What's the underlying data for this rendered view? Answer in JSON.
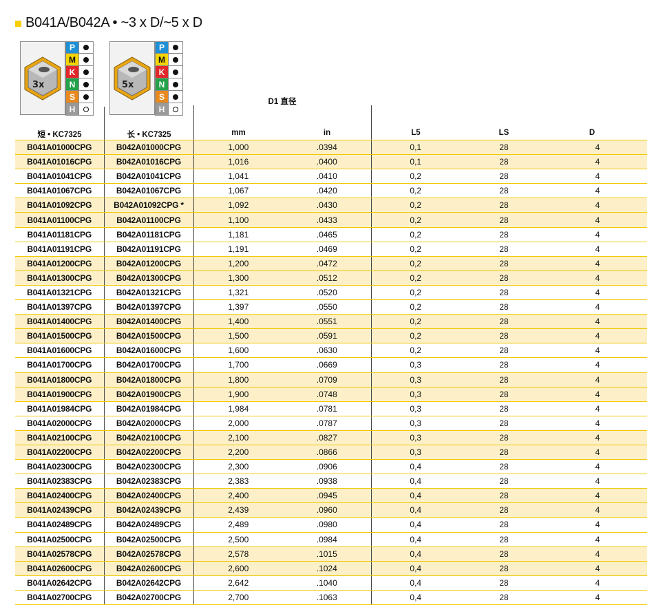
{
  "title": "B041A/B042A • ~3 x D/~5 x D",
  "colors": {
    "accent": "#f7cf00",
    "highlight": "#fdf0c8",
    "rule": "#f0c800"
  },
  "icons": [
    {
      "name": "3xd-drill-depth-icon",
      "label": "3x"
    },
    {
      "name": "5xd-drill-depth-icon",
      "label": "5x"
    }
  ],
  "materials": [
    {
      "letter": "P",
      "color": "#1e90d6",
      "text_color": "#ffffff",
      "rating": "full"
    },
    {
      "letter": "M",
      "color": "#f2d400",
      "text_color": "#111111",
      "rating": "full"
    },
    {
      "letter": "K",
      "color": "#e3262a",
      "text_color": "#ffffff",
      "rating": "full"
    },
    {
      "letter": "N",
      "color": "#23a24a",
      "text_color": "#ffffff",
      "rating": "full"
    },
    {
      "letter": "S",
      "color": "#e98a1f",
      "text_color": "#ffffff",
      "rating": "full"
    },
    {
      "letter": "H",
      "color": "#9a9a9a",
      "text_color": "#ffffff",
      "rating": "hollow"
    }
  ],
  "headers": {
    "d1": "D1 直径",
    "short": "短 • KC7325",
    "long": "长 • KC7325",
    "mm": "mm",
    "in": "in",
    "l5": "L5",
    "ls": "LS",
    "d": "D"
  },
  "rows": [
    [
      "B041A01000CPG",
      "B042A01000CPG",
      "1,000",
      ".0394",
      "0,1",
      "28",
      "4"
    ],
    [
      "B041A01016CPG",
      "B042A01016CPG",
      "1,016",
      ".0400",
      "0,1",
      "28",
      "4"
    ],
    [
      "B041A01041CPG",
      "B042A01041CPG",
      "1,041",
      ".0410",
      "0,2",
      "28",
      "4"
    ],
    [
      "B041A01067CPG",
      "B042A01067CPG",
      "1,067",
      ".0420",
      "0,2",
      "28",
      "4"
    ],
    [
      "B041A01092CPG",
      "B042A01092CPG  *",
      "1,092",
      ".0430",
      "0,2",
      "28",
      "4"
    ],
    [
      "B041A01100CPG",
      "B042A01100CPG",
      "1,100",
      ".0433",
      "0,2",
      "28",
      "4"
    ],
    [
      "B041A01181CPG",
      "B042A01181CPG",
      "1,181",
      ".0465",
      "0,2",
      "28",
      "4"
    ],
    [
      "B041A01191CPG",
      "B042A01191CPG",
      "1,191",
      ".0469",
      "0,2",
      "28",
      "4"
    ],
    [
      "B041A01200CPG",
      "B042A01200CPG",
      "1,200",
      ".0472",
      "0,2",
      "28",
      "4"
    ],
    [
      "B041A01300CPG",
      "B042A01300CPG",
      "1,300",
      ".0512",
      "0,2",
      "28",
      "4"
    ],
    [
      "B041A01321CPG",
      "B042A01321CPG",
      "1,321",
      ".0520",
      "0,2",
      "28",
      "4"
    ],
    [
      "B041A01397CPG",
      "B042A01397CPG",
      "1,397",
      ".0550",
      "0,2",
      "28",
      "4"
    ],
    [
      "B041A01400CPG",
      "B042A01400CPG",
      "1,400",
      ".0551",
      "0,2",
      "28",
      "4"
    ],
    [
      "B041A01500CPG",
      "B042A01500CPG",
      "1,500",
      ".0591",
      "0,2",
      "28",
      "4"
    ],
    [
      "B041A01600CPG",
      "B042A01600CPG",
      "1,600",
      ".0630",
      "0,2",
      "28",
      "4"
    ],
    [
      "B041A01700CPG",
      "B042A01700CPG",
      "1,700",
      ".0669",
      "0,3",
      "28",
      "4"
    ],
    [
      "B041A01800CPG",
      "B042A01800CPG",
      "1,800",
      ".0709",
      "0,3",
      "28",
      "4"
    ],
    [
      "B041A01900CPG",
      "B042A01900CPG",
      "1,900",
      ".0748",
      "0,3",
      "28",
      "4"
    ],
    [
      "B041A01984CPG",
      "B042A01984CPG",
      "1,984",
      ".0781",
      "0,3",
      "28",
      "4"
    ],
    [
      "B041A02000CPG",
      "B042A02000CPG",
      "2,000",
      ".0787",
      "0,3",
      "28",
      "4"
    ],
    [
      "B041A02100CPG",
      "B042A02100CPG",
      "2,100",
      ".0827",
      "0,3",
      "28",
      "4"
    ],
    [
      "B041A02200CPG",
      "B042A02200CPG",
      "2,200",
      ".0866",
      "0,3",
      "28",
      "4"
    ],
    [
      "B041A02300CPG",
      "B042A02300CPG",
      "2,300",
      ".0906",
      "0,4",
      "28",
      "4"
    ],
    [
      "B041A02383CPG",
      "B042A02383CPG",
      "2,383",
      ".0938",
      "0,4",
      "28",
      "4"
    ],
    [
      "B041A02400CPG",
      "B042A02400CPG",
      "2,400",
      ".0945",
      "0,4",
      "28",
      "4"
    ],
    [
      "B041A02439CPG",
      "B042A02439CPG",
      "2,439",
      ".0960",
      "0,4",
      "28",
      "4"
    ],
    [
      "B041A02489CPG",
      "B042A02489CPG",
      "2,489",
      ".0980",
      "0,4",
      "28",
      "4"
    ],
    [
      "B041A02500CPG",
      "B042A02500CPG",
      "2,500",
      ".0984",
      "0,4",
      "28",
      "4"
    ],
    [
      "B041A02578CPG",
      "B042A02578CPG",
      "2,578",
      ".1015",
      "0,4",
      "28",
      "4"
    ],
    [
      "B041A02600CPG",
      "B042A02600CPG",
      "2,600",
      ".1024",
      "0,4",
      "28",
      "4"
    ],
    [
      "B041A02642CPG",
      "B042A02642CPG",
      "2,642",
      ".1040",
      "0,4",
      "28",
      "4"
    ],
    [
      "B041A02700CPG",
      "B042A02700CPG",
      "2,700",
      ".1063",
      "0,4",
      "28",
      "4"
    ]
  ]
}
